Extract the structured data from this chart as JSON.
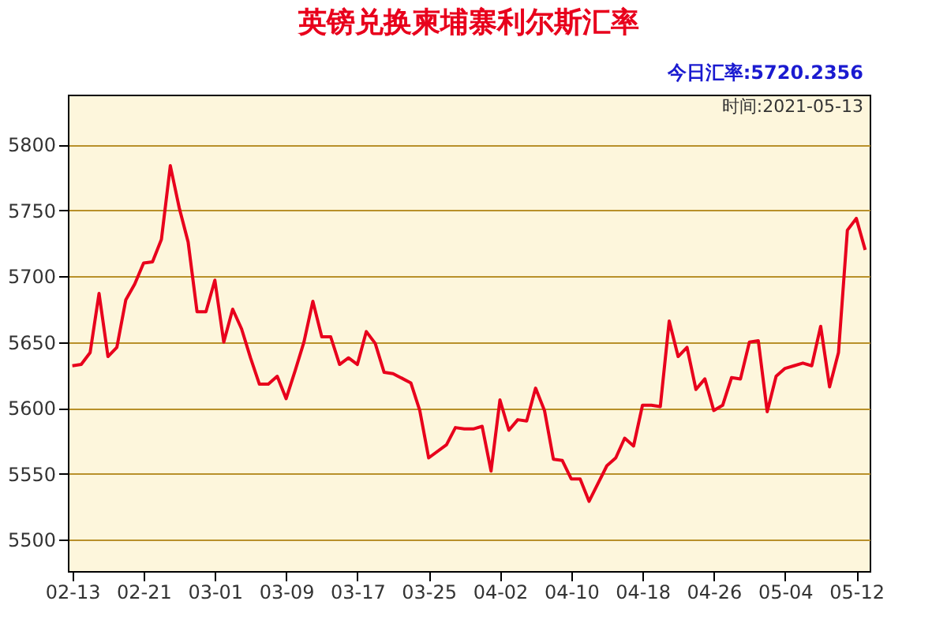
{
  "chart_data": {
    "type": "line",
    "title": "英镑兑换柬埔寨利尔斯汇率",
    "annotations": [
      "今日汇率:5720.2356",
      "时间:2021-05-13"
    ],
    "x": [
      "2021-02-13",
      "2021-02-14",
      "2021-02-15",
      "2021-02-16",
      "2021-02-17",
      "2021-02-18",
      "2021-02-19",
      "2021-02-20",
      "2021-02-21",
      "2021-02-22",
      "2021-02-23",
      "2021-02-24",
      "2021-02-25",
      "2021-02-26",
      "2021-02-27",
      "2021-02-28",
      "2021-03-01",
      "2021-03-02",
      "2021-03-03",
      "2021-03-04",
      "2021-03-05",
      "2021-03-06",
      "2021-03-07",
      "2021-03-08",
      "2021-03-09",
      "2021-03-10",
      "2021-03-11",
      "2021-03-12",
      "2021-03-13",
      "2021-03-14",
      "2021-03-15",
      "2021-03-16",
      "2021-03-17",
      "2021-03-18",
      "2021-03-19",
      "2021-03-20",
      "2021-03-21",
      "2021-03-23",
      "2021-03-24",
      "2021-03-25",
      "2021-03-27",
      "2021-03-28",
      "2021-03-29",
      "2021-03-30",
      "2021-03-31",
      "2021-04-01",
      "2021-04-02",
      "2021-04-03",
      "2021-04-04",
      "2021-04-05",
      "2021-04-06",
      "2021-04-07",
      "2021-04-08",
      "2021-04-09",
      "2021-04-10",
      "2021-04-11",
      "2021-04-12",
      "2021-04-14",
      "2021-04-15",
      "2021-04-16",
      "2021-04-17",
      "2021-04-18",
      "2021-04-19",
      "2021-04-20",
      "2021-04-21",
      "2021-04-22",
      "2021-04-23",
      "2021-04-24",
      "2021-04-25",
      "2021-04-26",
      "2021-04-27",
      "2021-04-28",
      "2021-04-29",
      "2021-04-30",
      "2021-05-01",
      "2021-05-02",
      "2021-05-03",
      "2021-05-04",
      "2021-05-05",
      "2021-05-06",
      "2021-05-07",
      "2021-05-08",
      "2021-05-09",
      "2021-05-10",
      "2021-05-11",
      "2021-05-12",
      "2021-05-13"
    ],
    "series": [
      {
        "color": "#e8001c",
        "values": [
          5632,
          5633,
          5642,
          5687,
          5639,
          5646,
          5682,
          5694,
          5710,
          5711,
          5728,
          5784,
          5752,
          5726,
          5673,
          5673,
          5697,
          5650,
          5675,
          5660,
          5638,
          5618,
          5618,
          5624,
          5607,
          5628,
          5650,
          5681,
          5654,
          5654,
          5633,
          5638,
          5633,
          5658,
          5649,
          5627,
          5626,
          5619,
          5598,
          5562,
          5572,
          5585,
          5584,
          5584,
          5586,
          5552,
          5606,
          5583,
          5591,
          5590,
          5615,
          5598,
          5561,
          5560,
          5546,
          5546,
          5529,
          5556,
          5562,
          5577,
          5571,
          5602,
          5602,
          5601,
          5666,
          5639,
          5646,
          5614,
          5622,
          5598,
          5602,
          5623,
          5622,
          5650,
          5651,
          5597,
          5624,
          5630,
          5632,
          5634,
          5632,
          5662,
          5616,
          5642,
          5735,
          5744,
          5720
        ]
      }
    ],
    "xlim": [
      "2021-02-12T12:00",
      "2021-05-13T12:00"
    ],
    "xticks": [
      {
        "value": "2021-02-13",
        "label": "02-13"
      },
      {
        "value": "2021-02-21",
        "label": "02-21"
      },
      {
        "value": "2021-03-01",
        "label": "03-01"
      },
      {
        "value": "2021-03-09",
        "label": "03-09"
      },
      {
        "value": "2021-03-17",
        "label": "03-17"
      },
      {
        "value": "2021-03-25",
        "label": "03-25"
      },
      {
        "value": "2021-04-02",
        "label": "04-02"
      },
      {
        "value": "2021-04-10",
        "label": "04-10"
      },
      {
        "value": "2021-04-18",
        "label": "04-18"
      },
      {
        "value": "2021-04-26",
        "label": "04-26"
      },
      {
        "value": "2021-05-04",
        "label": "05-04"
      },
      {
        "value": "2021-05-12",
        "label": "05-12"
      }
    ],
    "ylim": [
      5476,
      5838
    ],
    "yticks": [
      5500,
      5550,
      5600,
      5650,
      5700,
      5750,
      5800
    ],
    "grid": "y",
    "legend": false,
    "marker": "none",
    "line_style": "solid"
  }
}
